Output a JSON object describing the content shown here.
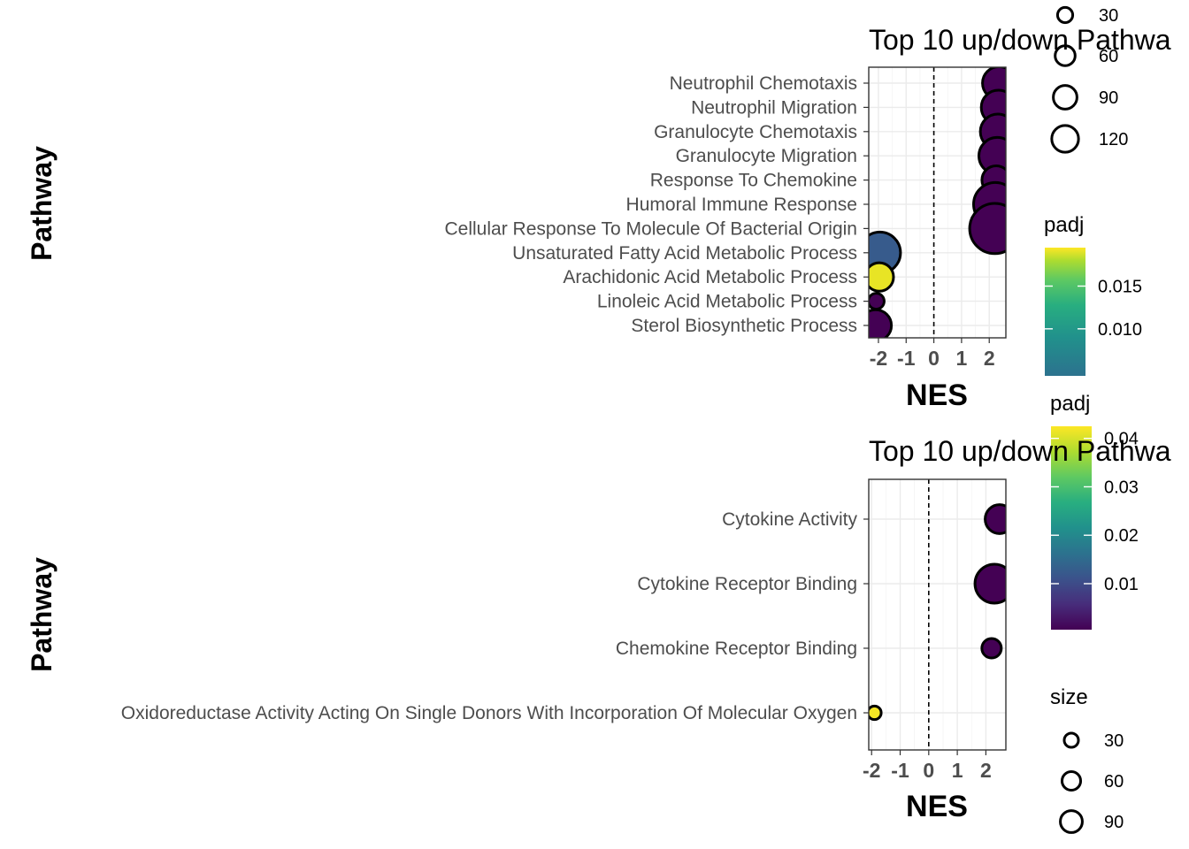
{
  "chart_data": [
    {
      "type": "scatter",
      "title": "Top 10 up/down Pathwa",
      "xlabel": "NES",
      "ylabel": "Pathway",
      "xlim": [
        -2.35,
        2.6
      ],
      "x_ticks": [
        "-2",
        "-1",
        "0",
        "1",
        "2"
      ],
      "grid": true,
      "reference_line": {
        "x": 0,
        "style": "dashed"
      },
      "categories": [
        "Neutrophil Chemotaxis",
        "Neutrophil Migration",
        "Granulocyte Chemotaxis",
        "Granulocyte Migration",
        "Response To Chemokine",
        "Humoral Immune Response",
        "Cellular Response To Molecule Of Bacterial Origin",
        "Unsaturated Fatty Acid Metabolic Process",
        "Arachidonic Acid Metabolic Process",
        "Linoleic Acid Metabolic Process",
        "Sterol Biosynthetic Process"
      ],
      "points": [
        {
          "pathway": "Neutrophil Chemotaxis",
          "NES": 2.35,
          "size": 60,
          "padj": 0.0045
        },
        {
          "pathway": "Neutrophil Migration",
          "NES": 2.33,
          "size": 65,
          "padj": 0.0045
        },
        {
          "pathway": "Granulocyte Chemotaxis",
          "NES": 2.31,
          "size": 68,
          "padj": 0.0045
        },
        {
          "pathway": "Granulocyte Migration",
          "NES": 2.29,
          "size": 75,
          "padj": 0.0045
        },
        {
          "pathway": "Response To Chemokine",
          "NES": 2.25,
          "size": 45,
          "padj": 0.0045
        },
        {
          "pathway": "Humoral Immune Response",
          "NES": 2.22,
          "size": 105,
          "padj": 0.0045
        },
        {
          "pathway": "Cellular Response To Molecule Of Bacterial Origin",
          "NES": 2.2,
          "size": 140,
          "padj": 0.0045
        },
        {
          "pathway": "Unsaturated Fatty Acid Metabolic Process",
          "NES": -1.95,
          "size": 95,
          "padj": 0.0088
        },
        {
          "pathway": "Arachidonic Acid Metabolic Process",
          "NES": -1.97,
          "size": 45,
          "padj": 0.019
        },
        {
          "pathway": "Linoleic Acid Metabolic Process",
          "NES": -2.08,
          "size": 14,
          "padj": 0.0045
        },
        {
          "pathway": "Sterol Biosynthetic Process",
          "NES": -2.1,
          "size": 55,
          "padj": 0.0045
        }
      ],
      "legend_size": {
        "title": "",
        "breaks": [
          30,
          60,
          90,
          120
        ]
      },
      "legend_color": {
        "title": "padj",
        "labels": [
          "0.015",
          "0.010"
        ],
        "label_values": [
          0.015,
          0.01
        ],
        "range": [
          0.0045,
          0.019
        ],
        "palette": "viridis"
      }
    },
    {
      "type": "scatter",
      "title": "Top 10 up/down Pathwa",
      "xlabel": "NES",
      "ylabel": "Pathway",
      "xlim": [
        -2.1,
        2.7
      ],
      "x_ticks": [
        "-2",
        "-1",
        "0",
        "1",
        "2"
      ],
      "grid": true,
      "reference_line": {
        "x": 0,
        "style": "dashed"
      },
      "categories": [
        "Cytokine Activity",
        "Cytokine Receptor Binding",
        "Chemokine Receptor Binding",
        "Oxidoreductase Activity Acting On Single Donors With Incorporation Of Molecular Oxygen"
      ],
      "points": [
        {
          "pathway": "Cytokine Activity",
          "NES": 2.48,
          "size": 55,
          "padj": 0.0005
        },
        {
          "pathway": "Cytokine Receptor Binding",
          "NES": 2.3,
          "size": 100,
          "padj": 0.0005
        },
        {
          "pathway": "Chemokine Receptor Binding",
          "NES": 2.2,
          "size": 25,
          "padj": 0.0005
        },
        {
          "pathway": "Oxidoreductase Activity Acting On Single Donors With Incorporation Of Molecular Oxygen",
          "NES": -1.9,
          "size": 12,
          "padj": 0.042
        }
      ],
      "legend_size": {
        "title": "size",
        "breaks": [
          30,
          60,
          90
        ]
      },
      "legend_color": {
        "title": "padj",
        "labels": [
          "0.04",
          "0.03",
          "0.02",
          "0.01"
        ],
        "label_values": [
          0.04,
          0.03,
          0.02,
          0.01
        ],
        "range": [
          0.0005,
          0.0425
        ],
        "palette": "viridis"
      }
    }
  ]
}
